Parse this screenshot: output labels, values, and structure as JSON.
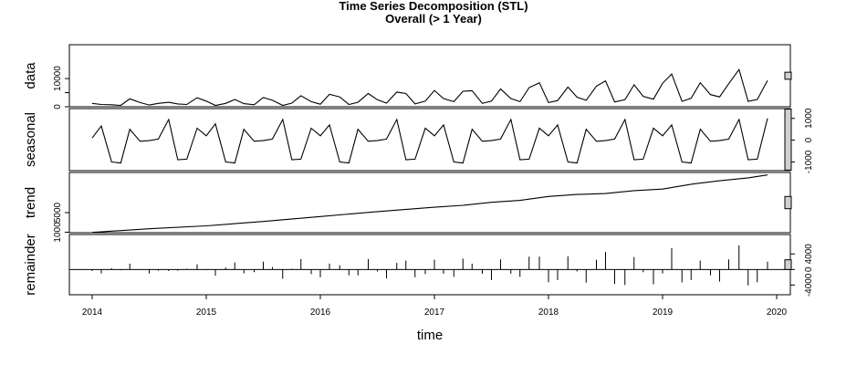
{
  "chart_data": {
    "type": "line",
    "title": "Time Series Decomposition (STL)",
    "subtitle": "Overall (> 1 Year)",
    "xlabel": "time",
    "x_ticks": [
      "2014",
      "2015",
      "2016",
      "2017",
      "2018",
      "2019",
      "2020"
    ],
    "xlim": [
      2013.8,
      2020.12
    ],
    "panels": [
      {
        "name": "data",
        "ylim": [
          0,
          22000
        ],
        "ticks": [
          {
            "value": 0,
            "label": "0"
          },
          {
            "value": 5000,
            "label": ""
          },
          {
            "value": 10000,
            "label": "10000"
          }
        ],
        "tick_side": "left",
        "bar_height": 2500,
        "style": "line"
      },
      {
        "name": "seasonal",
        "ylim": [
          -1400,
          1450
        ],
        "ticks": [
          {
            "value": -1000,
            "label": "-1000"
          },
          {
            "value": 0,
            "label": "0"
          },
          {
            "value": 1000,
            "label": "1000"
          }
        ],
        "tick_side": "right",
        "bar_height": 2800,
        "style": "line"
      },
      {
        "name": "trend",
        "ylim": [
          900,
          13200
        ],
        "ticks": [
          {
            "value": 1000,
            "label": "1000"
          },
          {
            "value": 5000,
            "label": "5000"
          }
        ],
        "tick_side": "left",
        "bar_height": 2500,
        "style": "line"
      },
      {
        "name": "remainder",
        "ylim": [
          -6500,
          9000
        ],
        "ticks": [
          {
            "value": -4000,
            "label": "-4000"
          },
          {
            "value": 0,
            "label": "0"
          },
          {
            "value": 4000,
            "label": "4000"
          }
        ],
        "tick_side": "right",
        "bar_height": 2500,
        "style": "spikes"
      }
    ],
    "series": {
      "data": [
        [
          2014.0,
          1200
        ],
        [
          2014.08,
          800
        ],
        [
          2014.17,
          700
        ],
        [
          2014.25,
          500
        ],
        [
          2014.33,
          2800
        ],
        [
          2014.42,
          1500
        ],
        [
          2014.5,
          600
        ],
        [
          2014.58,
          1200
        ],
        [
          2014.67,
          1600
        ],
        [
          2014.75,
          1000
        ],
        [
          2014.83,
          800
        ],
        [
          2014.92,
          3200
        ],
        [
          2015.0,
          2000
        ],
        [
          2015.08,
          500
        ],
        [
          2015.17,
          1200
        ],
        [
          2015.25,
          2600
        ],
        [
          2015.33,
          1100
        ],
        [
          2015.42,
          700
        ],
        [
          2015.5,
          3300
        ],
        [
          2015.58,
          2300
        ],
        [
          2015.67,
          500
        ],
        [
          2015.75,
          1300
        ],
        [
          2015.83,
          3900
        ],
        [
          2015.92,
          1800
        ],
        [
          2016.0,
          900
        ],
        [
          2016.08,
          4400
        ],
        [
          2016.17,
          3500
        ],
        [
          2016.25,
          800
        ],
        [
          2016.33,
          1600
        ],
        [
          2016.42,
          4700
        ],
        [
          2016.5,
          2500
        ],
        [
          2016.58,
          1300
        ],
        [
          2016.67,
          5200
        ],
        [
          2016.75,
          4700
        ],
        [
          2016.83,
          1000
        ],
        [
          2016.92,
          2000
        ],
        [
          2017.0,
          5800
        ],
        [
          2017.08,
          2900
        ],
        [
          2017.17,
          1800
        ],
        [
          2017.25,
          5500
        ],
        [
          2017.33,
          5700
        ],
        [
          2017.42,
          1200
        ],
        [
          2017.5,
          2000
        ],
        [
          2017.58,
          6300
        ],
        [
          2017.67,
          2900
        ],
        [
          2017.75,
          1800
        ],
        [
          2017.83,
          6800
        ],
        [
          2017.92,
          8500
        ],
        [
          2018.0,
          1500
        ],
        [
          2018.08,
          2200
        ],
        [
          2018.17,
          7000
        ],
        [
          2018.25,
          3400
        ],
        [
          2018.33,
          2300
        ],
        [
          2018.42,
          7300
        ],
        [
          2018.5,
          9200
        ],
        [
          2018.58,
          1700
        ],
        [
          2018.67,
          2500
        ],
        [
          2018.75,
          7800
        ],
        [
          2018.83,
          3700
        ],
        [
          2018.92,
          2700
        ],
        [
          2019.0,
          8300
        ],
        [
          2019.08,
          11600
        ],
        [
          2019.17,
          1900
        ],
        [
          2019.25,
          3000
        ],
        [
          2019.33,
          8500
        ],
        [
          2019.42,
          4300
        ],
        [
          2019.5,
          3500
        ],
        [
          2019.58,
          8200
        ],
        [
          2019.67,
          13200
        ],
        [
          2019.75,
          1900
        ],
        [
          2019.83,
          2600
        ],
        [
          2019.92,
          9300
        ]
      ],
      "seasonal": [
        [
          2014.0,
          100
        ],
        [
          2014.08,
          650
        ],
        [
          2014.17,
          -1000
        ],
        [
          2014.25,
          -1050
        ],
        [
          2014.33,
          500
        ],
        [
          2014.42,
          -50
        ],
        [
          2014.5,
          -20
        ],
        [
          2014.58,
          50
        ],
        [
          2014.67,
          950
        ],
        [
          2014.75,
          -900
        ],
        [
          2014.83,
          -870
        ],
        [
          2014.92,
          550
        ],
        [
          2015.0,
          200
        ],
        [
          2015.08,
          750
        ],
        [
          2015.17,
          -1000
        ],
        [
          2015.25,
          -1050
        ],
        [
          2015.33,
          500
        ],
        [
          2015.42,
          -50
        ],
        [
          2015.5,
          -20
        ],
        [
          2015.58,
          50
        ],
        [
          2015.67,
          950
        ],
        [
          2015.75,
          -900
        ],
        [
          2015.83,
          -870
        ],
        [
          2015.92,
          550
        ],
        [
          2016.0,
          200
        ],
        [
          2016.08,
          700
        ],
        [
          2016.17,
          -1000
        ],
        [
          2016.25,
          -1050
        ],
        [
          2016.33,
          500
        ],
        [
          2016.42,
          -50
        ],
        [
          2016.5,
          -20
        ],
        [
          2016.58,
          50
        ],
        [
          2016.67,
          950
        ],
        [
          2016.75,
          -900
        ],
        [
          2016.83,
          -870
        ],
        [
          2016.92,
          550
        ],
        [
          2017.0,
          200
        ],
        [
          2017.08,
          700
        ],
        [
          2017.17,
          -1000
        ],
        [
          2017.25,
          -1050
        ],
        [
          2017.33,
          500
        ],
        [
          2017.42,
          -50
        ],
        [
          2017.5,
          -20
        ],
        [
          2017.58,
          50
        ],
        [
          2017.67,
          950
        ],
        [
          2017.75,
          -900
        ],
        [
          2017.83,
          -870
        ],
        [
          2017.92,
          550
        ],
        [
          2018.0,
          200
        ],
        [
          2018.08,
          700
        ],
        [
          2018.17,
          -1000
        ],
        [
          2018.25,
          -1050
        ],
        [
          2018.33,
          500
        ],
        [
          2018.42,
          -50
        ],
        [
          2018.5,
          -20
        ],
        [
          2018.58,
          50
        ],
        [
          2018.67,
          950
        ],
        [
          2018.75,
          -900
        ],
        [
          2018.83,
          -870
        ],
        [
          2018.92,
          550
        ],
        [
          2019.0,
          200
        ],
        [
          2019.08,
          700
        ],
        [
          2019.17,
          -1000
        ],
        [
          2019.25,
          -1050
        ],
        [
          2019.33,
          500
        ],
        [
          2019.42,
          -50
        ],
        [
          2019.5,
          -20
        ],
        [
          2019.58,
          50
        ],
        [
          2019.67,
          950
        ],
        [
          2019.75,
          -900
        ],
        [
          2019.83,
          -870
        ],
        [
          2019.92,
          1000
        ]
      ],
      "trend": [
        [
          2014.0,
          950
        ],
        [
          2014.5,
          1700
        ],
        [
          2015.0,
          2300
        ],
        [
          2015.5,
          3200
        ],
        [
          2016.0,
          4200
        ],
        [
          2016.5,
          5200
        ],
        [
          2017.0,
          6100
        ],
        [
          2017.25,
          6500
        ],
        [
          2017.5,
          7100
        ],
        [
          2017.75,
          7500
        ],
        [
          2018.0,
          8300
        ],
        [
          2018.25,
          8700
        ],
        [
          2018.5,
          8900
        ],
        [
          2018.75,
          9500
        ],
        [
          2019.0,
          9800
        ],
        [
          2019.25,
          10800
        ],
        [
          2019.5,
          11500
        ],
        [
          2019.75,
          12100
        ],
        [
          2019.92,
          12700
        ]
      ],
      "remainder": [
        [
          2014.0,
          -400
        ],
        [
          2014.08,
          -1000
        ],
        [
          2014.17,
          300
        ],
        [
          2014.25,
          -200
        ],
        [
          2014.33,
          1500
        ],
        [
          2014.42,
          100
        ],
        [
          2014.5,
          -1000
        ],
        [
          2014.58,
          -300
        ],
        [
          2014.67,
          -400
        ],
        [
          2014.75,
          -300
        ],
        [
          2014.83,
          200
        ],
        [
          2014.92,
          1300
        ],
        [
          2015.0,
          -200
        ],
        [
          2015.08,
          -1600
        ],
        [
          2015.17,
          500
        ],
        [
          2015.25,
          1800
        ],
        [
          2015.33,
          -1000
        ],
        [
          2015.42,
          -700
        ],
        [
          2015.5,
          2000
        ],
        [
          2015.58,
          600
        ],
        [
          2015.67,
          -2400
        ],
        [
          2015.75,
          200
        ],
        [
          2015.83,
          2700
        ],
        [
          2015.92,
          -1200
        ],
        [
          2016.0,
          -2000
        ],
        [
          2016.08,
          1500
        ],
        [
          2016.17,
          1100
        ],
        [
          2016.25,
          -1500
        ],
        [
          2016.33,
          -1500
        ],
        [
          2016.42,
          2700
        ],
        [
          2016.5,
          -500
        ],
        [
          2016.58,
          -2300
        ],
        [
          2016.67,
          1700
        ],
        [
          2016.75,
          2300
        ],
        [
          2016.83,
          -2000
        ],
        [
          2016.92,
          -1200
        ],
        [
          2017.0,
          2500
        ],
        [
          2017.08,
          -1100
        ],
        [
          2017.17,
          -1900
        ],
        [
          2017.25,
          2800
        ],
        [
          2017.33,
          1500
        ],
        [
          2017.42,
          -1100
        ],
        [
          2017.5,
          -2700
        ],
        [
          2017.58,
          2600
        ],
        [
          2017.67,
          -1100
        ],
        [
          2017.75,
          -1900
        ],
        [
          2017.83,
          3300
        ],
        [
          2017.92,
          3300
        ],
        [
          2018.0,
          -3300
        ],
        [
          2018.08,
          -2700
        ],
        [
          2018.17,
          3400
        ],
        [
          2018.25,
          -500
        ],
        [
          2018.33,
          -3400
        ],
        [
          2018.42,
          2500
        ],
        [
          2018.5,
          4500
        ],
        [
          2018.58,
          -3700
        ],
        [
          2018.67,
          -4000
        ],
        [
          2018.75,
          3200
        ],
        [
          2018.83,
          -700
        ],
        [
          2018.92,
          -3800
        ],
        [
          2019.0,
          -1000
        ],
        [
          2019.08,
          5500
        ],
        [
          2019.17,
          -3300
        ],
        [
          2019.25,
          -2700
        ],
        [
          2019.33,
          2300
        ],
        [
          2019.42,
          -1500
        ],
        [
          2019.5,
          -3100
        ],
        [
          2019.58,
          2600
        ],
        [
          2019.67,
          6200
        ],
        [
          2019.75,
          -4100
        ],
        [
          2019.83,
          -3300
        ],
        [
          2019.92,
          2000
        ]
      ]
    }
  }
}
